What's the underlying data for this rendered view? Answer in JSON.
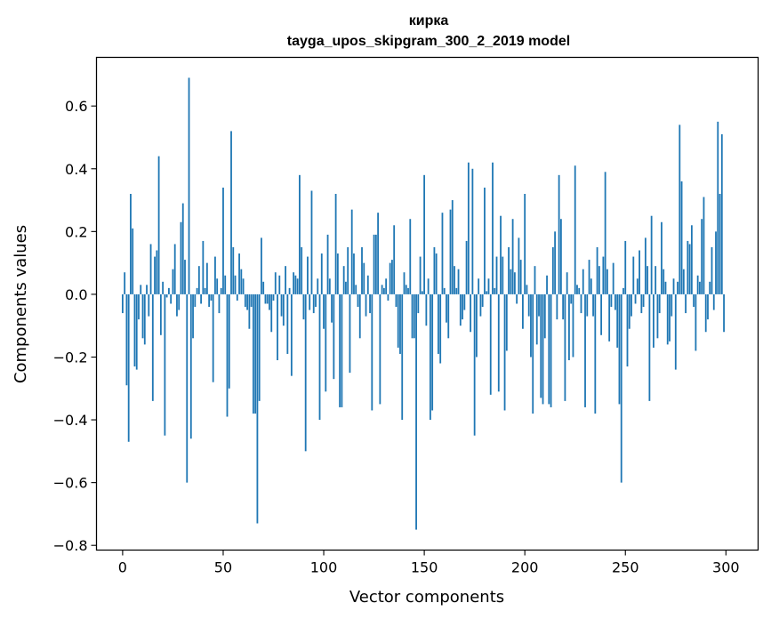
{
  "chart_data": {
    "type": "bar",
    "title": "кирка",
    "subtitle": "tayga_upos_skipgram_300_2_2019 model",
    "xlabel": "Vector components",
    "ylabel": "Components values",
    "xlim": [
      -13,
      316
    ],
    "ylim": [
      -0.815,
      0.755
    ],
    "xticks": [
      0,
      50,
      100,
      150,
      200,
      250,
      300
    ],
    "xtick_labels": [
      "0",
      "50",
      "100",
      "150",
      "200",
      "250",
      "300"
    ],
    "yticks": [
      -0.8,
      -0.6,
      -0.4,
      -0.2,
      0.0,
      0.2,
      0.4,
      0.6
    ],
    "ytick_labels": [
      "−0.8",
      "−0.6",
      "−0.4",
      "−0.2",
      "0.0",
      "0.2",
      "0.4",
      "0.6"
    ],
    "bar_color": "#1f77b4",
    "grid": false,
    "categories_start": 0,
    "categories_count": 300,
    "values": [
      -0.06,
      0.07,
      -0.29,
      -0.47,
      0.32,
      0.21,
      -0.23,
      -0.24,
      -0.08,
      0.03,
      -0.14,
      -0.16,
      0.03,
      -0.07,
      0.16,
      -0.34,
      0.12,
      0.14,
      0.44,
      -0.13,
      0.04,
      -0.45,
      -0.01,
      0.02,
      -0.03,
      0.08,
      0.16,
      -0.07,
      -0.05,
      0.23,
      0.29,
      0.11,
      -0.6,
      0.69,
      -0.46,
      -0.14,
      -0.04,
      0.02,
      0.09,
      -0.03,
      0.17,
      0.02,
      0.1,
      -0.04,
      -0.02,
      -0.28,
      0.12,
      0.05,
      -0.06,
      0.02,
      0.34,
      0.06,
      -0.39,
      -0.3,
      0.52,
      0.15,
      0.06,
      -0.02,
      0.13,
      0.08,
      0.05,
      -0.04,
      -0.05,
      -0.11,
      -0.04,
      -0.38,
      -0.38,
      -0.73,
      -0.34,
      0.18,
      0.04,
      -0.03,
      -0.03,
      -0.05,
      -0.12,
      -0.02,
      0.07,
      -0.21,
      0.06,
      -0.07,
      -0.1,
      0.09,
      -0.19,
      0.02,
      -0.26,
      0.07,
      0.06,
      0.05,
      0.38,
      0.15,
      -0.08,
      -0.5,
      0.12,
      -0.05,
      0.33,
      -0.06,
      -0.04,
      0.05,
      -0.4,
      0.13,
      -0.11,
      -0.31,
      0.19,
      0.05,
      -0.09,
      -0.27,
      0.32,
      0.13,
      -0.36,
      -0.36,
      0.09,
      0.04,
      0.15,
      -0.25,
      0.27,
      0.13,
      0.03,
      -0.04,
      -0.14,
      0.15,
      0.1,
      -0.07,
      0.06,
      -0.06,
      -0.37,
      0.19,
      0.19,
      0.26,
      -0.35,
      0.03,
      0.02,
      0.05,
      -0.02,
      0.1,
      0.11,
      0.22,
      -0.04,
      -0.17,
      -0.19,
      -0.4,
      0.07,
      0.03,
      0.02,
      0.24,
      -0.14,
      -0.14,
      -0.75,
      -0.06,
      0.12,
      0.01,
      0.38,
      -0.1,
      0.05,
      -0.4,
      -0.37,
      0.15,
      0.13,
      -0.19,
      -0.22,
      0.26,
      0.02,
      -0.09,
      -0.14,
      0.27,
      0.3,
      0.09,
      0.02,
      0.08,
      -0.1,
      -0.08,
      -0.05,
      0.17,
      0.42,
      -0.12,
      0.4,
      -0.45,
      -0.2,
      0.05,
      -0.07,
      -0.04,
      0.34,
      0.01,
      0.05,
      -0.32,
      0.42,
      0.02,
      0.12,
      -0.31,
      0.25,
      0.12,
      -0.37,
      -0.18,
      0.15,
      0.08,
      0.24,
      0.07,
      -0.03,
      0.18,
      0.11,
      -0.11,
      0.32,
      0.03,
      -0.07,
      -0.2,
      -0.38,
      0.09,
      -0.16,
      -0.07,
      -0.33,
      -0.35,
      -0.14,
      0.06,
      -0.35,
      -0.36,
      0.15,
      0.2,
      -0.08,
      0.38,
      0.24,
      -0.08,
      -0.34,
      0.07,
      -0.21,
      -0.03,
      -0.2,
      0.41,
      0.03,
      0.02,
      -0.06,
      0.08,
      -0.36,
      -0.07,
      0.11,
      0.05,
      -0.07,
      -0.38,
      0.15,
      0.09,
      -0.13,
      0.12,
      0.39,
      0.08,
      -0.15,
      -0.04,
      0.1,
      -0.05,
      -0.17,
      -0.35,
      -0.6,
      0.02,
      0.17,
      -0.23,
      -0.11,
      -0.07,
      0.12,
      -0.03,
      0.05,
      0.14,
      -0.06,
      -0.04,
      0.18,
      0.09,
      -0.34,
      0.25,
      -0.17,
      0.09,
      -0.14,
      -0.06,
      0.23,
      0.08,
      0.04,
      -0.16,
      -0.15,
      -0.07,
      0.05,
      -0.24,
      0.04,
      0.54,
      0.36,
      0.08,
      -0.06,
      0.17,
      0.16,
      0.22,
      -0.04,
      -0.18,
      0.06,
      0.04,
      0.24,
      0.31,
      -0.12,
      -0.08,
      0.04,
      0.15,
      -0.05,
      0.2,
      0.55,
      0.32,
      0.51,
      -0.12
    ]
  }
}
